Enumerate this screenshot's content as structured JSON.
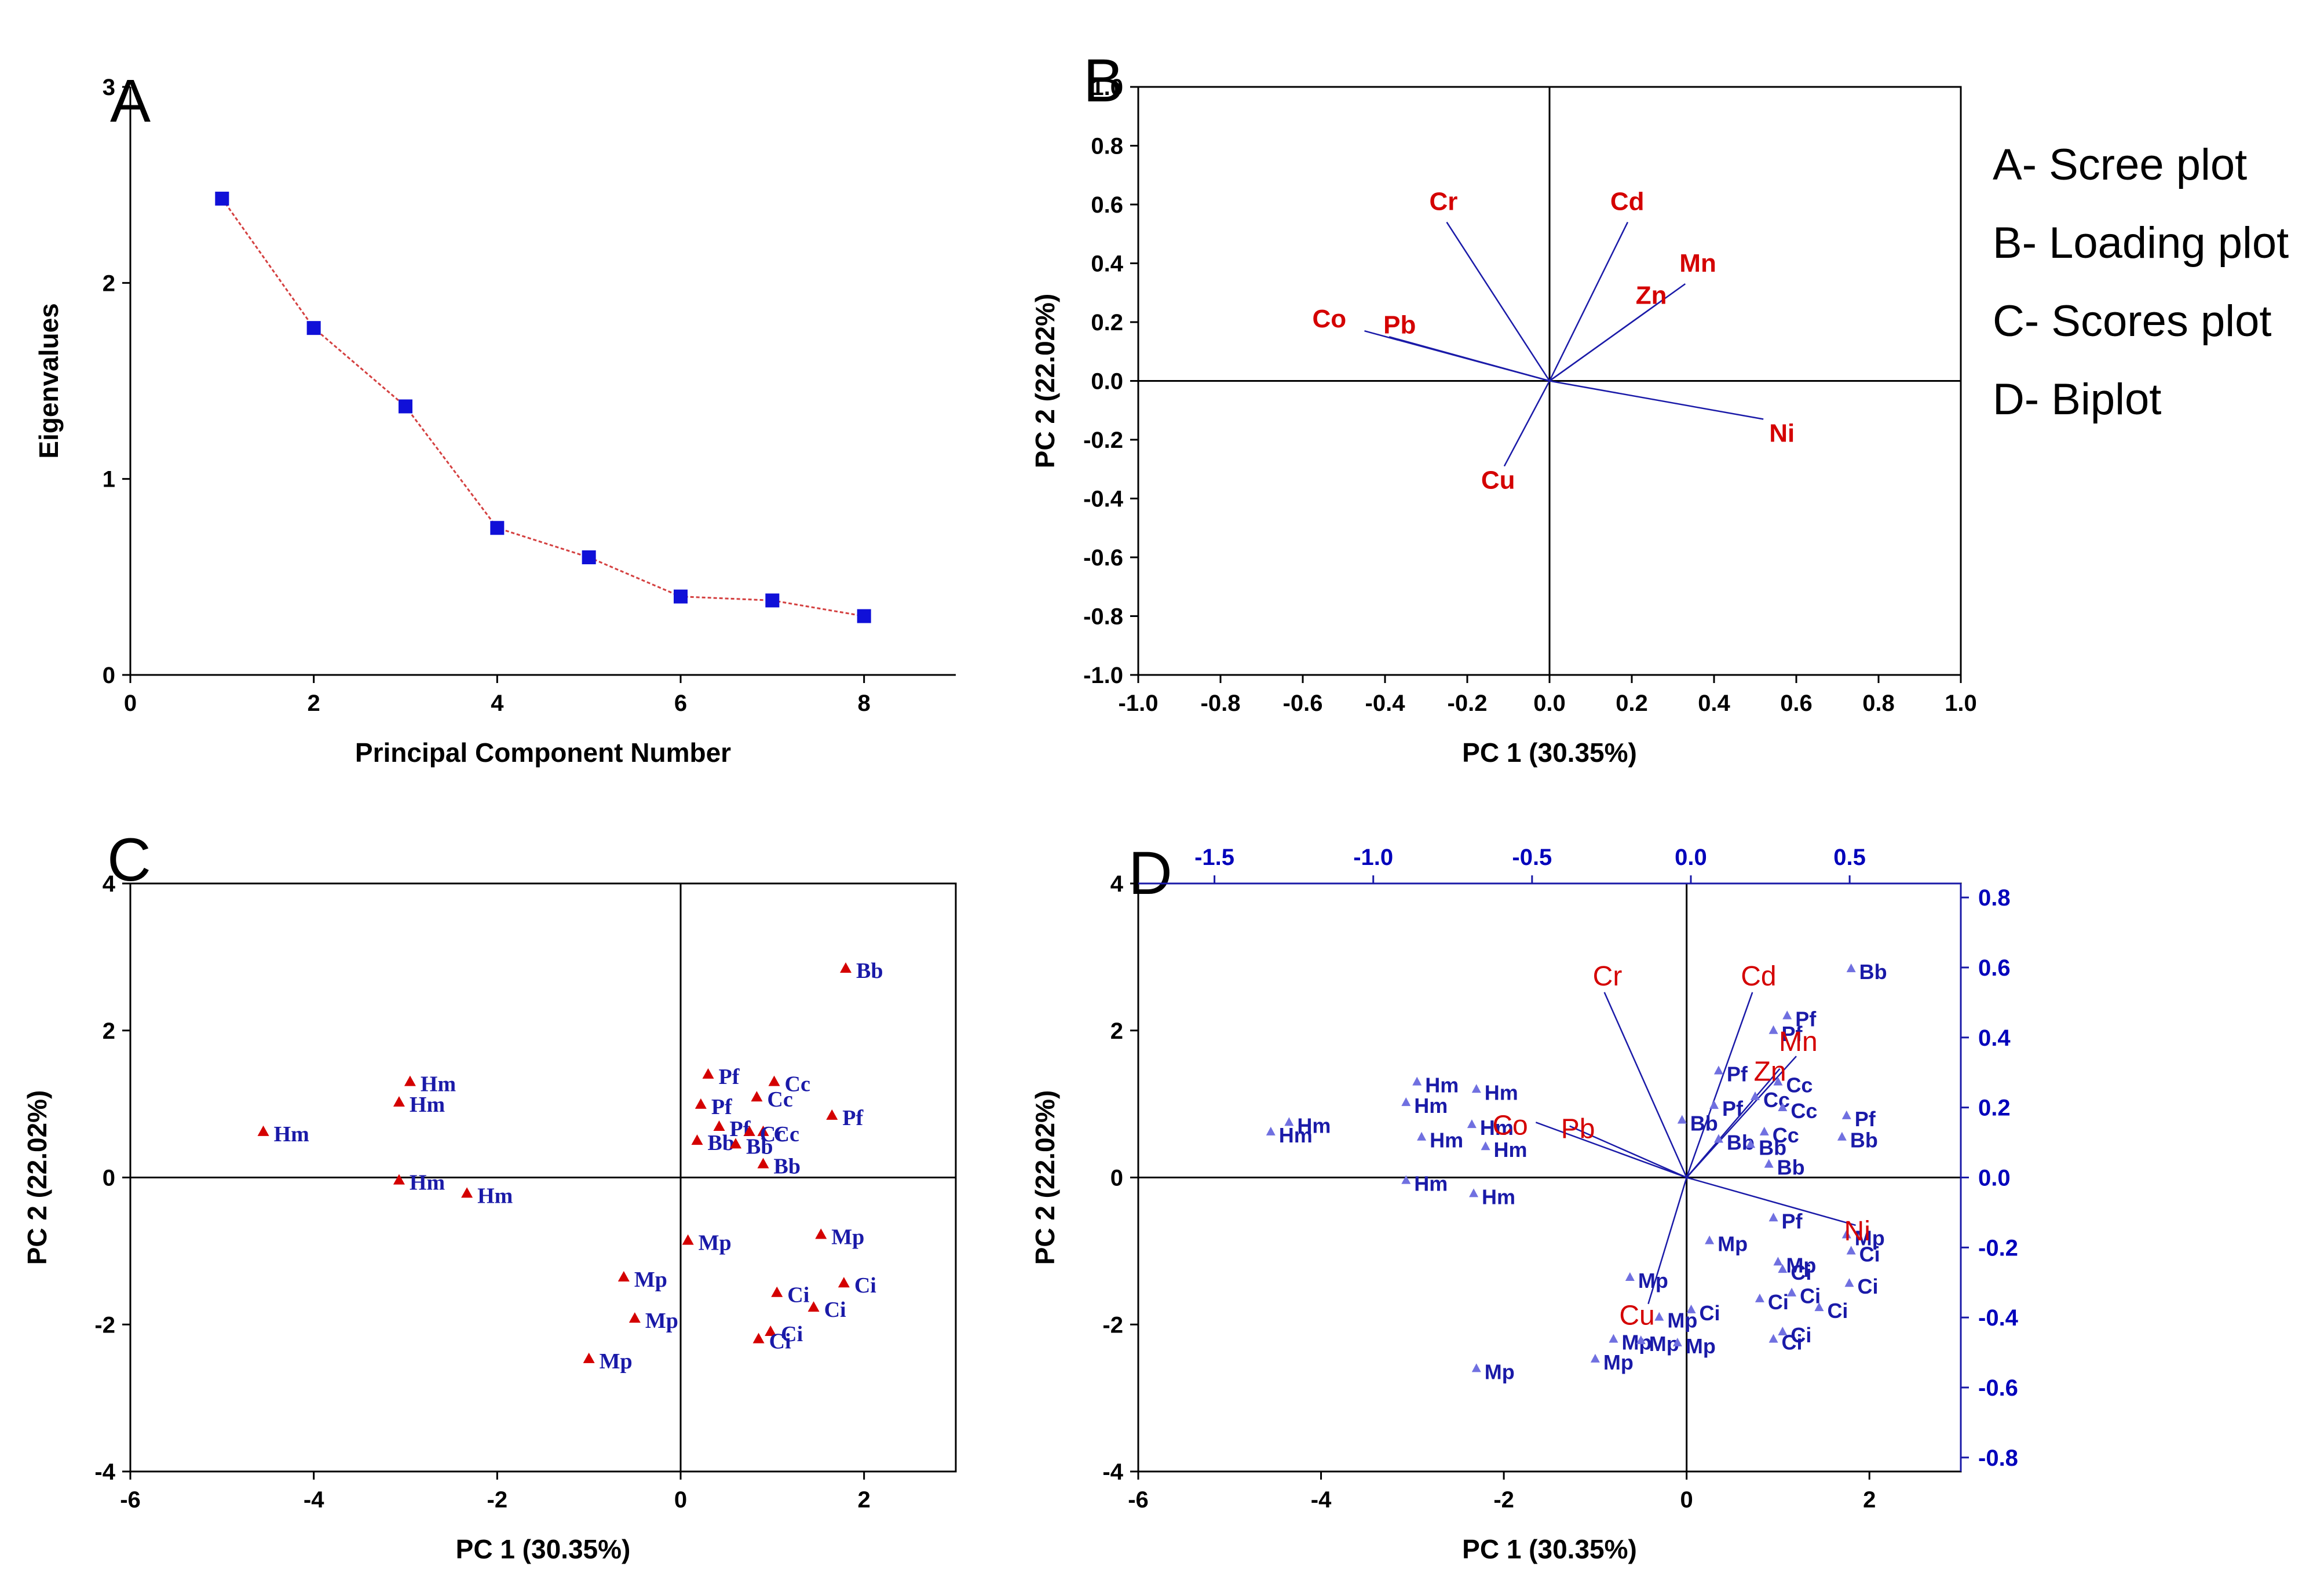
{
  "figure_legend": [
    {
      "letter": "A",
      "text": "A- Scree plot"
    },
    {
      "letter": "B",
      "text": "B- Loading plot"
    },
    {
      "letter": "C",
      "text": "C- Scores plot"
    },
    {
      "letter": "D",
      "text": "D- Biplot"
    }
  ],
  "colors": {
    "scree_marker": "#1010d8",
    "scree_line": "#d44040",
    "variable": "#d40000",
    "sample": "#1a1aa8",
    "vector": "#1a1aa8",
    "point": "#d40000",
    "axis": "#000000"
  },
  "chart_data": [
    {
      "id": "A",
      "panel_label": "A",
      "type": "line",
      "title": "Scree plot",
      "xlabel": "Principal Component Number",
      "ylabel": "Eigenvalues",
      "xlim": [
        0,
        9
      ],
      "ylim": [
        0,
        3
      ],
      "xticks": [
        0,
        2,
        4,
        6,
        8
      ],
      "yticks": [
        0,
        1,
        2,
        3
      ],
      "x": [
        1,
        2,
        3,
        4,
        5,
        6,
        7,
        8
      ],
      "values": [
        2.43,
        1.77,
        1.37,
        0.75,
        0.6,
        0.4,
        0.38,
        0.3
      ]
    },
    {
      "id": "B",
      "panel_label": "B",
      "type": "scatter",
      "title": "Loading plot",
      "xlabel": "PC 1 (30.35%)",
      "ylabel": "PC 2 (22.02%)",
      "xlim": [
        -1.0,
        1.0
      ],
      "ylim": [
        -1.0,
        1.0
      ],
      "xticks": [
        -1.0,
        -0.8,
        -0.6,
        -0.4,
        -0.2,
        0.0,
        0.2,
        0.4,
        0.6,
        0.8,
        1.0
      ],
      "yticks": [
        -1.0,
        -0.8,
        -0.6,
        -0.4,
        -0.2,
        0.0,
        0.2,
        0.4,
        0.6,
        0.8,
        1.0
      ],
      "tick_labels_x": [
        "-1.0",
        "-0.8",
        "-0.6",
        "-0.4",
        "-0.2",
        "0.0",
        "0.2",
        "0.4",
        "0.6",
        "0.8",
        "1.0"
      ],
      "tick_labels_y": [
        "-1.0",
        "-0.8",
        "-0.6",
        "-0.4",
        "-0.2",
        "0.0",
        "0.2",
        "0.4",
        "0.6",
        "0.8",
        "1.0"
      ],
      "loadings": [
        {
          "name": "Cr",
          "x": -0.25,
          "y": 0.54
        },
        {
          "name": "Cd",
          "x": 0.19,
          "y": 0.54
        },
        {
          "name": "Mn",
          "x": 0.33,
          "y": 0.33
        },
        {
          "name": "Zn",
          "x": 0.28,
          "y": 0.28
        },
        {
          "name": "Co",
          "x": -0.45,
          "y": 0.17
        },
        {
          "name": "Pb",
          "x": -0.39,
          "y": 0.15
        },
        {
          "name": "Ni",
          "x": 0.52,
          "y": -0.13
        },
        {
          "name": "Cu",
          "x": -0.11,
          "y": -0.29
        }
      ]
    },
    {
      "id": "C",
      "panel_label": "C",
      "type": "scatter",
      "title": "Scores plot",
      "xlabel": "PC 1 (30.35%)",
      "ylabel": "PC 2 (22.02%)",
      "xlim": [
        -6,
        3
      ],
      "ylim": [
        -4,
        4
      ],
      "xticks": [
        -6,
        -4,
        -2,
        0,
        2
      ],
      "yticks": [
        -4,
        -2,
        0,
        2,
        4
      ],
      "points": [
        {
          "label": "Hm",
          "x": -4.55,
          "y": 0.62
        },
        {
          "label": "Hm",
          "x": -2.95,
          "y": 1.3
        },
        {
          "label": "Hm",
          "x": -3.07,
          "y": 1.02
        },
        {
          "label": "Hm",
          "x": -3.07,
          "y": -0.04
        },
        {
          "label": "Hm",
          "x": -2.33,
          "y": -0.22
        },
        {
          "label": "Pf",
          "x": 0.3,
          "y": 1.4
        },
        {
          "label": "Pf",
          "x": 0.22,
          "y": 0.99
        },
        {
          "label": "Pf",
          "x": 0.42,
          "y": 0.69
        },
        {
          "label": "Pf",
          "x": 1.65,
          "y": 0.84
        },
        {
          "label": "Cc",
          "x": 1.02,
          "y": 1.3
        },
        {
          "label": "Cc",
          "x": 0.83,
          "y": 1.09
        },
        {
          "label": "Cc",
          "x": 0.9,
          "y": 0.62
        },
        {
          "label": "Cc",
          "x": 0.75,
          "y": 0.62
        },
        {
          "label": "Bb",
          "x": 1.8,
          "y": 2.84
        },
        {
          "label": "Bb",
          "x": 0.18,
          "y": 0.5
        },
        {
          "label": "Bb",
          "x": 0.6,
          "y": 0.45
        },
        {
          "label": "Bb",
          "x": 0.9,
          "y": 0.18
        },
        {
          "label": "Mp",
          "x": 0.08,
          "y": -0.86
        },
        {
          "label": "Mp",
          "x": -0.62,
          "y": -1.36
        },
        {
          "label": "Mp",
          "x": -0.5,
          "y": -1.92
        },
        {
          "label": "Mp",
          "x": -1.0,
          "y": -2.47
        },
        {
          "label": "Mp",
          "x": 1.53,
          "y": -0.78
        },
        {
          "label": "Ci",
          "x": 1.05,
          "y": -1.57
        },
        {
          "label": "Ci",
          "x": 1.45,
          "y": -1.77
        },
        {
          "label": "Ci",
          "x": 1.78,
          "y": -1.44
        },
        {
          "label": "Ci",
          "x": 0.98,
          "y": -2.1
        },
        {
          "label": "Ci",
          "x": 0.85,
          "y": -2.2
        }
      ]
    },
    {
      "id": "D",
      "panel_label": "D",
      "type": "scatter",
      "title": "Biplot",
      "xlabel": "PC 1 (30.35%)",
      "ylabel": "PC 2 (22.02%)",
      "xlim": [
        -6,
        3
      ],
      "ylim": [
        -4,
        4
      ],
      "xticks": [
        -6,
        -4,
        -2,
        0,
        2
      ],
      "yticks": [
        -4,
        -2,
        0,
        2,
        4
      ],
      "secondary_xlim": [
        -1.74,
        0.85
      ],
      "secondary_ylim": [
        -0.84,
        0.84
      ],
      "secondary_xticks": [
        -1.5,
        -1.0,
        -0.5,
        0.0,
        0.5
      ],
      "secondary_xtick_labels": [
        "-1.5",
        "-1.0",
        "-0.5",
        "0.0",
        "0.5"
      ],
      "secondary_yticks": [
        -0.8,
        -0.6,
        -0.4,
        -0.2,
        0.0,
        0.2,
        0.4,
        0.6,
        0.8
      ],
      "secondary_ytick_labels": [
        "-0.8",
        "-0.6",
        "-0.4",
        "-0.2",
        "0.0",
        "0.2",
        "0.4",
        "0.6",
        "0.8"
      ],
      "vectors": [
        {
          "name": "Cr",
          "x": -0.9,
          "y": 2.52
        },
        {
          "name": "Cd",
          "x": 0.72,
          "y": 2.52
        },
        {
          "name": "Mn",
          "x": 1.2,
          "y": 1.65
        },
        {
          "name": "Zn",
          "x": 1.02,
          "y": 1.48
        },
        {
          "name": "Co",
          "x": -1.65,
          "y": 0.75
        },
        {
          "name": "Pb",
          "x": -1.28,
          "y": 0.7
        },
        {
          "name": "Ni",
          "x": 1.85,
          "y": -0.65
        },
        {
          "name": "Cu",
          "x": -0.42,
          "y": -1.72
        }
      ],
      "points": [
        {
          "label": "Hm",
          "x": -4.55,
          "y": 0.62
        },
        {
          "label": "Hm",
          "x": -4.35,
          "y": 0.75
        },
        {
          "label": "Hm",
          "x": -2.95,
          "y": 1.3
        },
        {
          "label": "Hm",
          "x": -3.07,
          "y": 1.02
        },
        {
          "label": "Hm",
          "x": -2.3,
          "y": 1.2
        },
        {
          "label": "Hm",
          "x": -2.35,
          "y": 0.72
        },
        {
          "label": "Hm",
          "x": -2.9,
          "y": 0.55
        },
        {
          "label": "Hm",
          "x": -2.2,
          "y": 0.42
        },
        {
          "label": "Hm",
          "x": -3.07,
          "y": -0.04
        },
        {
          "label": "Hm",
          "x": -2.33,
          "y": -0.22
        },
        {
          "label": "Bb",
          "x": 1.8,
          "y": 2.84
        },
        {
          "label": "Bb",
          "x": -0.05,
          "y": 0.78
        },
        {
          "label": "Bb",
          "x": 0.35,
          "y": 0.52
        },
        {
          "label": "Bb",
          "x": 1.7,
          "y": 0.55
        },
        {
          "label": "Bb",
          "x": 0.9,
          "y": 0.18
        },
        {
          "label": "Bb",
          "x": 0.7,
          "y": 0.45
        },
        {
          "label": "Pf",
          "x": 1.1,
          "y": 2.2
        },
        {
          "label": "Pf",
          "x": 0.95,
          "y": 2.0
        },
        {
          "label": "Pf",
          "x": 0.35,
          "y": 1.45
        },
        {
          "label": "Pf",
          "x": 0.3,
          "y": 0.98
        },
        {
          "label": "Pf",
          "x": 1.75,
          "y": 0.84
        },
        {
          "label": "Pf",
          "x": 0.95,
          "y": -0.55
        },
        {
          "label": "Cc",
          "x": 1.0,
          "y": 1.3
        },
        {
          "label": "Cc",
          "x": 0.75,
          "y": 1.1
        },
        {
          "label": "Cc",
          "x": 1.05,
          "y": 0.95
        },
        {
          "label": "Cc",
          "x": 0.85,
          "y": 0.62
        },
        {
          "label": "Mp",
          "x": 0.25,
          "y": -0.86
        },
        {
          "label": "Mp",
          "x": -0.62,
          "y": -1.36
        },
        {
          "label": "Mp",
          "x": -0.3,
          "y": -1.9
        },
        {
          "label": "Mp",
          "x": -0.8,
          "y": -2.2
        },
        {
          "label": "Mp",
          "x": -0.5,
          "y": -2.22
        },
        {
          "label": "Mp",
          "x": -0.1,
          "y": -2.25
        },
        {
          "label": "Mp",
          "x": -1.0,
          "y": -2.47
        },
        {
          "label": "Mp",
          "x": -2.3,
          "y": -2.6
        },
        {
          "label": "Mp",
          "x": 1.0,
          "y": -1.15
        },
        {
          "label": "Mp",
          "x": 1.75,
          "y": -0.78
        },
        {
          "label": "Ci",
          "x": 0.05,
          "y": -1.8
        },
        {
          "label": "Ci",
          "x": 0.8,
          "y": -1.65
        },
        {
          "label": "Ci",
          "x": 1.05,
          "y": -1.25
        },
        {
          "label": "Ci",
          "x": 1.15,
          "y": -1.57
        },
        {
          "label": "Ci",
          "x": 1.45,
          "y": -1.77
        },
        {
          "label": "Ci",
          "x": 1.78,
          "y": -1.44
        },
        {
          "label": "Ci",
          "x": 1.8,
          "y": -1.0
        },
        {
          "label": "Ci",
          "x": 1.05,
          "y": -2.1
        },
        {
          "label": "Ci",
          "x": 0.95,
          "y": -2.2
        }
      ]
    }
  ]
}
